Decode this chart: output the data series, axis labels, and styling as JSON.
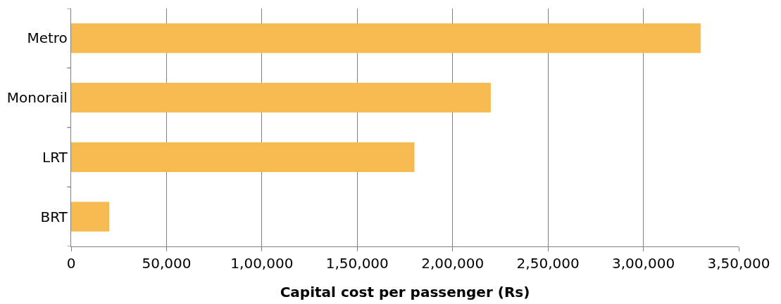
{
  "chart_data": {
    "type": "bar",
    "orientation": "horizontal",
    "xlabel": "Capital cost per passenger (Rs)",
    "categories": [
      "Metro",
      "Monorail",
      "LRT",
      "BRT"
    ],
    "values": [
      330000,
      220000,
      180000,
      20000
    ],
    "color": "#f5bb50",
    "xlim": [
      0,
      350000
    ],
    "xticks": [
      0,
      {
        "value": 50000,
        "label": "50,000"
      },
      {
        "value": 100000,
        "label": "1,00,000"
      },
      {
        "value": 150000,
        "label": "1,50,000"
      },
      {
        "value": 200000,
        "label": "2,00,000"
      },
      {
        "value": 250000,
        "label": "2,50,000"
      },
      {
        "value": 300000,
        "label": "3,00,000"
      },
      {
        "value": 350000,
        "label": "3,50,000"
      }
    ],
    "grid": "x"
  }
}
